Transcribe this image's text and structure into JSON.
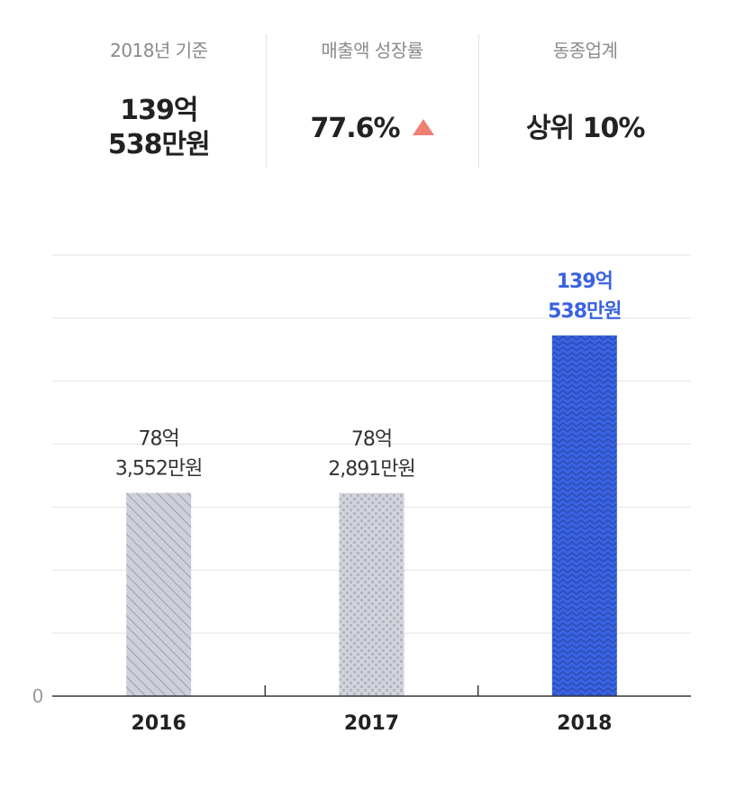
{
  "summary": {
    "items": [
      {
        "label": "2018년 기준",
        "value_lines": [
          "139억",
          "538만원"
        ]
      },
      {
        "label": "매출액 성장률",
        "value_lines": [
          "77.6%"
        ],
        "trend": "up-triangle-icon"
      },
      {
        "label": "동종업계",
        "value_lines": [
          "상위 10%"
        ]
      }
    ]
  },
  "colors": {
    "accent": "#3a63e2",
    "bar_gray": "#c7c9d3",
    "trend_up": "#ee7f73",
    "grid": "#e2e2e2"
  },
  "chart_data": {
    "type": "bar",
    "categories": [
      "2016",
      "2017",
      "2018"
    ],
    "values": [
      78.3552,
      78.2891,
      139.0538
    ],
    "data_labels": [
      [
        "78억",
        "3,552만원"
      ],
      [
        "78억",
        "2,891만원"
      ],
      [
        "139억",
        "538만원"
      ]
    ],
    "patterns": [
      "diagonal-hatch",
      "dots",
      "zigzag"
    ],
    "highlight_index": 2,
    "unit": "억원",
    "ylim": [
      0,
      170
    ],
    "yticks": [
      "0"
    ],
    "grid": true,
    "legend": "none"
  }
}
